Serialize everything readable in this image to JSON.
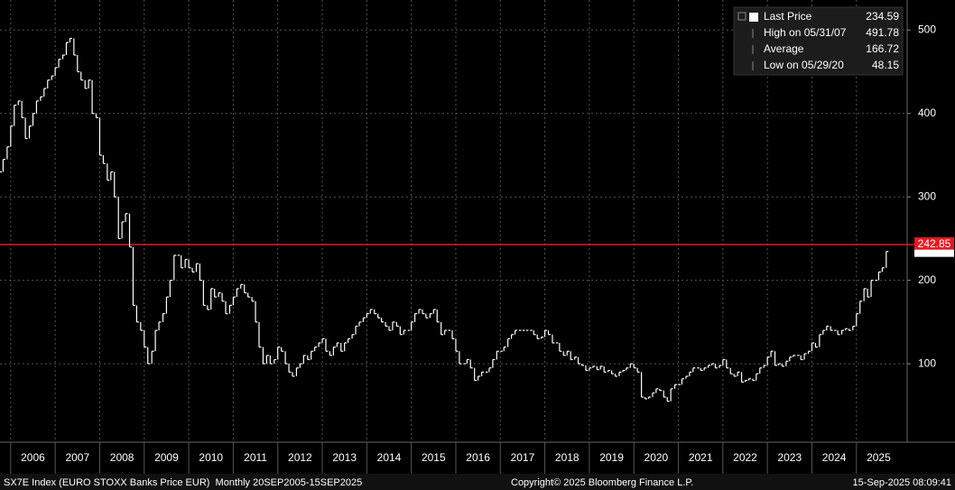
{
  "chart_data": {
    "type": "price-bars",
    "color": "#ffffff",
    "series": [
      {
        "name": "Last Price",
        "color": "#ffffff",
        "x": [
          2005.75,
          2005.83,
          2005.92,
          2006,
          2006.08,
          2006.17,
          2006.25,
          2006.33,
          2006.42,
          2006.5,
          2006.58,
          2006.67,
          2006.75,
          2006.83,
          2006.92,
          2007,
          2007.08,
          2007.17,
          2007.25,
          2007.33,
          2007.42,
          2007.5,
          2007.58,
          2007.67,
          2007.75,
          2007.83,
          2007.92,
          2008,
          2008.08,
          2008.17,
          2008.25,
          2008.33,
          2008.42,
          2008.5,
          2008.58,
          2008.67,
          2008.75,
          2008.83,
          2008.92,
          2009,
          2009.08,
          2009.17,
          2009.25,
          2009.33,
          2009.42,
          2009.5,
          2009.58,
          2009.67,
          2009.75,
          2009.83,
          2009.92,
          2010,
          2010.08,
          2010.17,
          2010.25,
          2010.33,
          2010.42,
          2010.5,
          2010.58,
          2010.67,
          2010.75,
          2010.83,
          2010.92,
          2011,
          2011.08,
          2011.17,
          2011.25,
          2011.33,
          2011.42,
          2011.5,
          2011.58,
          2011.67,
          2011.75,
          2011.83,
          2011.92,
          2012,
          2012.08,
          2012.17,
          2012.25,
          2012.33,
          2012.42,
          2012.5,
          2012.58,
          2012.67,
          2012.75,
          2012.83,
          2012.92,
          2013,
          2013.08,
          2013.17,
          2013.25,
          2013.33,
          2013.42,
          2013.5,
          2013.58,
          2013.67,
          2013.75,
          2013.83,
          2013.92,
          2014,
          2014.08,
          2014.17,
          2014.25,
          2014.33,
          2014.42,
          2014.5,
          2014.58,
          2014.67,
          2014.75,
          2014.83,
          2014.92,
          2015,
          2015.08,
          2015.17,
          2015.25,
          2015.33,
          2015.42,
          2015.5,
          2015.58,
          2015.67,
          2015.75,
          2015.83,
          2015.92,
          2016,
          2016.08,
          2016.17,
          2016.25,
          2016.33,
          2016.42,
          2016.5,
          2016.58,
          2016.67,
          2016.75,
          2016.83,
          2016.92,
          2017,
          2017.08,
          2017.17,
          2017.25,
          2017.33,
          2017.42,
          2017.5,
          2017.58,
          2017.67,
          2017.75,
          2017.83,
          2017.92,
          2018,
          2018.08,
          2018.17,
          2018.25,
          2018.33,
          2018.42,
          2018.5,
          2018.58,
          2018.67,
          2018.75,
          2018.83,
          2018.92,
          2019,
          2019.08,
          2019.17,
          2019.25,
          2019.33,
          2019.42,
          2019.5,
          2019.58,
          2019.67,
          2019.75,
          2019.83,
          2019.92,
          2020,
          2020.08,
          2020.17,
          2020.25,
          2020.33,
          2020.42,
          2020.5,
          2020.58,
          2020.67,
          2020.75,
          2020.83,
          2020.92,
          2021,
          2021.08,
          2021.17,
          2021.25,
          2021.33,
          2021.42,
          2021.5,
          2021.58,
          2021.67,
          2021.75,
          2021.83,
          2021.92,
          2022,
          2022.08,
          2022.17,
          2022.25,
          2022.33,
          2022.42,
          2022.5,
          2022.58,
          2022.67,
          2022.75,
          2022.83,
          2022.92,
          2023,
          2023.08,
          2023.17,
          2023.25,
          2023.33,
          2023.42,
          2023.5,
          2023.58,
          2023.67,
          2023.75,
          2023.83,
          2023.92,
          2024,
          2024.08,
          2024.17,
          2024.25,
          2024.33,
          2024.42,
          2024.5,
          2024.58,
          2024.67,
          2024.75,
          2024.83,
          2024.92,
          2025,
          2025.08,
          2025.17,
          2025.25,
          2025.33,
          2025.42,
          2025.5,
          2025.58,
          2025.67
        ],
        "values": [
          330,
          345,
          360,
          385,
          410,
          415,
          395,
          370,
          385,
          400,
          415,
          420,
          430,
          440,
          445,
          455,
          465,
          470,
          485,
          490,
          470,
          450,
          440,
          430,
          440,
          400,
          395,
          350,
          340,
          320,
          330,
          300,
          250,
          270,
          280,
          240,
          170,
          150,
          140,
          120,
          100,
          115,
          140,
          150,
          160,
          180,
          200,
          230,
          230,
          215,
          225,
          215,
          210,
          220,
          200,
          170,
          165,
          190,
          180,
          185,
          175,
          160,
          170,
          180,
          190,
          195,
          185,
          180,
          175,
          150,
          120,
          100,
          110,
          100,
          105,
          120,
          115,
          100,
          90,
          85,
          95,
          100,
          110,
          105,
          115,
          120,
          125,
          130,
          115,
          110,
          120,
          125,
          115,
          125,
          130,
          135,
          145,
          150,
          155,
          160,
          165,
          160,
          155,
          150,
          145,
          140,
          150,
          145,
          135,
          140,
          140,
          150,
          160,
          165,
          160,
          155,
          160,
          165,
          150,
          135,
          140,
          140,
          130,
          115,
          100,
          100,
          105,
          95,
          80,
          85,
          90,
          90,
          95,
          105,
          115,
          115,
          120,
          130,
          135,
          140,
          140,
          140,
          140,
          140,
          135,
          130,
          132,
          140,
          135,
          125,
          125,
          115,
          110,
          115,
          105,
          108,
          100,
          98,
          92,
          95,
          97,
          93,
          97,
          90,
          92,
          88,
          85,
          90,
          92,
          95,
          100,
          95,
          90,
          60,
          58,
          60,
          65,
          70,
          68,
          60,
          55,
          70,
          75,
          75,
          82,
          85,
          90,
          95,
          95,
          92,
          95,
          98,
          100,
          95,
          98,
          105,
          95,
          88,
          85,
          90,
          78,
          80,
          82,
          80,
          88,
          95,
          98,
          108,
          115,
          98,
          100,
          97,
          103,
          108,
          110,
          110,
          105,
          112,
          115,
          125,
          120,
          135,
          140,
          145,
          140,
          140,
          135,
          140,
          142,
          140,
          145,
          160,
          175,
          190,
          180,
          200,
          200,
          210,
          215,
          234.59
        ]
      }
    ],
    "reference_line": {
      "value": 242.85,
      "color": "#e31b23"
    },
    "xlim": [
      2005.76,
      2026.14
    ],
    "xticks": [
      {
        "value": 2006,
        "label": "2006"
      },
      {
        "value": 2007,
        "label": "2007"
      },
      {
        "value": 2008,
        "label": "2008"
      },
      {
        "value": 2009,
        "label": "2009"
      },
      {
        "value": 2010,
        "label": "2010"
      },
      {
        "value": 2011,
        "label": "2011"
      },
      {
        "value": 2012,
        "label": "2012"
      },
      {
        "value": 2013,
        "label": "2013"
      },
      {
        "value": 2014,
        "label": "2014"
      },
      {
        "value": 2015,
        "label": "2015"
      },
      {
        "value": 2016,
        "label": "2016"
      },
      {
        "value": 2017,
        "label": "2017"
      },
      {
        "value": 2018,
        "label": "2018"
      },
      {
        "value": 2019,
        "label": "2019"
      },
      {
        "value": 2020,
        "label": "2020"
      },
      {
        "value": 2021,
        "label": "2021"
      },
      {
        "value": 2022,
        "label": "2022"
      },
      {
        "value": 2023,
        "label": "2023"
      },
      {
        "value": 2024,
        "label": "2024"
      },
      {
        "value": 2025,
        "label": "2025"
      }
    ],
    "ylim": [
      6,
      536
    ],
    "yticks": [
      100,
      200,
      300,
      400,
      500
    ],
    "grid": true,
    "legend": {
      "position": "upper right",
      "entries": [
        {
          "label": "Last Price",
          "value": 234.59
        },
        {
          "label": "High on 05/31/07",
          "value": 491.78
        },
        {
          "label": "Average",
          "value": 166.72
        },
        {
          "label": "Low on 05/29/20",
          "value": 48.15
        }
      ]
    }
  },
  "footer": {
    "left": "SX7E Index (EURO STOXX Banks Price EUR)  Monthly 20SEP2005-15SEP2025",
    "center": "Copyright© 2025 Bloomberg Finance L.P.",
    "right": "15-Sep-2025 08:09:41"
  }
}
